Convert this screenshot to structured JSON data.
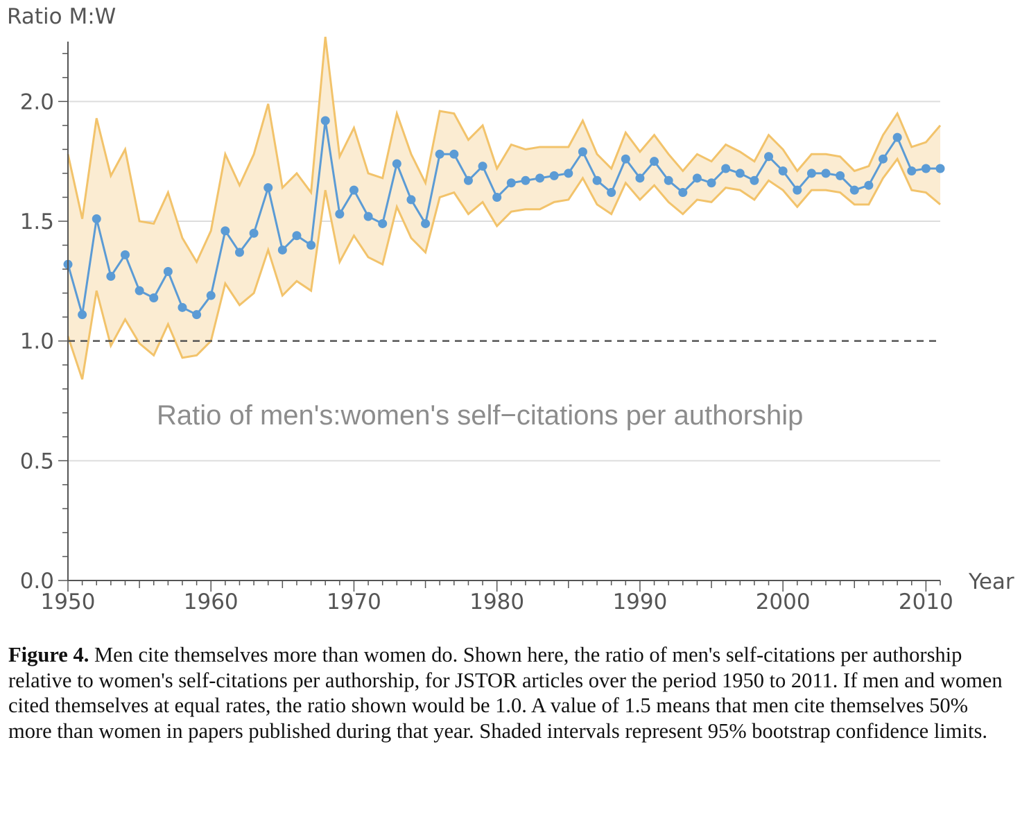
{
  "chart_data": {
    "type": "line",
    "ylabel": "Ratio M:W",
    "xlabel": "Year",
    "annotation": "Ratio of men's:women's self−citations per authorship",
    "xlim": [
      1950,
      2011
    ],
    "ylim": [
      0,
      2.25
    ],
    "x_ticks": [
      1950,
      1960,
      1970,
      1980,
      1990,
      2000,
      2010
    ],
    "y_ticks": [
      0.0,
      0.5,
      1.0,
      1.5,
      2.0
    ],
    "y_tick_labels": [
      "0.0",
      "0.5",
      "1.0",
      "1.5",
      "2.0"
    ],
    "reference_line": 1.0,
    "colors": {
      "line": "#5b9bd5",
      "band": "#fbecd2",
      "band_edge": "#f2c36b",
      "grid": "#dddddd",
      "reference": "#555555"
    },
    "series": [
      {
        "name": "Ratio",
        "x": [
          1950,
          1951,
          1952,
          1953,
          1954,
          1955,
          1956,
          1957,
          1958,
          1959,
          1960,
          1961,
          1962,
          1963,
          1964,
          1965,
          1966,
          1967,
          1968,
          1969,
          1970,
          1971,
          1972,
          1973,
          1974,
          1975,
          1976,
          1977,
          1978,
          1979,
          1980,
          1981,
          1982,
          1983,
          1984,
          1985,
          1986,
          1987,
          1988,
          1989,
          1990,
          1991,
          1992,
          1993,
          1994,
          1995,
          1996,
          1997,
          1998,
          1999,
          2000,
          2001,
          2002,
          2003,
          2004,
          2005,
          2006,
          2007,
          2008,
          2009,
          2010,
          2011
        ],
        "values": [
          1.32,
          1.11,
          1.51,
          1.27,
          1.36,
          1.21,
          1.18,
          1.29,
          1.14,
          1.11,
          1.19,
          1.46,
          1.37,
          1.45,
          1.64,
          1.38,
          1.44,
          1.4,
          1.92,
          1.53,
          1.63,
          1.52,
          1.49,
          1.74,
          1.59,
          1.49,
          1.78,
          1.78,
          1.67,
          1.73,
          1.6,
          1.66,
          1.67,
          1.68,
          1.69,
          1.7,
          1.79,
          1.67,
          1.62,
          1.76,
          1.68,
          1.75,
          1.67,
          1.62,
          1.68,
          1.66,
          1.72,
          1.7,
          1.67,
          1.77,
          1.71,
          1.63,
          1.7,
          1.7,
          1.69,
          1.63,
          1.65,
          1.76,
          1.85,
          1.71,
          1.72,
          1.72
        ]
      },
      {
        "name": "Upper 95% limit",
        "values": [
          1.78,
          1.51,
          1.93,
          1.69,
          1.8,
          1.5,
          1.49,
          1.62,
          1.43,
          1.33,
          1.46,
          1.78,
          1.65,
          1.78,
          1.99,
          1.64,
          1.7,
          1.62,
          2.27,
          1.77,
          1.89,
          1.7,
          1.68,
          1.95,
          1.78,
          1.66,
          1.96,
          1.95,
          1.84,
          1.9,
          1.72,
          1.82,
          1.8,
          1.81,
          1.81,
          1.81,
          1.92,
          1.78,
          1.72,
          1.87,
          1.79,
          1.86,
          1.78,
          1.71,
          1.78,
          1.75,
          1.82,
          1.79,
          1.75,
          1.86,
          1.8,
          1.71,
          1.78,
          1.78,
          1.77,
          1.71,
          1.73,
          1.86,
          1.95,
          1.81,
          1.83,
          1.9
        ]
      },
      {
        "name": "Lower 95% limit",
        "values": [
          1.02,
          0.84,
          1.21,
          0.98,
          1.09,
          0.99,
          0.94,
          1.07,
          0.93,
          0.94,
          1.0,
          1.24,
          1.15,
          1.2,
          1.38,
          1.19,
          1.25,
          1.21,
          1.63,
          1.33,
          1.44,
          1.35,
          1.32,
          1.56,
          1.43,
          1.37,
          1.6,
          1.62,
          1.53,
          1.58,
          1.48,
          1.54,
          1.55,
          1.55,
          1.58,
          1.59,
          1.68,
          1.57,
          1.53,
          1.66,
          1.59,
          1.65,
          1.58,
          1.53,
          1.59,
          1.58,
          1.64,
          1.63,
          1.59,
          1.67,
          1.63,
          1.56,
          1.63,
          1.63,
          1.62,
          1.57,
          1.57,
          1.68,
          1.76,
          1.63,
          1.62,
          1.57
        ]
      }
    ]
  },
  "caption": {
    "label": "Figure 4.",
    "text": "Men cite themselves more than women do. Shown here, the ratio of men's self-citations per authorship relative to women's self-citations per authorship, for JSTOR articles over the period 1950 to 2011. If men and women cited themselves at equal rates, the ratio shown would be 1.0. A value of 1.5 means that men cite themselves 50% more than women in papers published during that year. Shaded intervals represent 95% bootstrap confidence limits."
  }
}
